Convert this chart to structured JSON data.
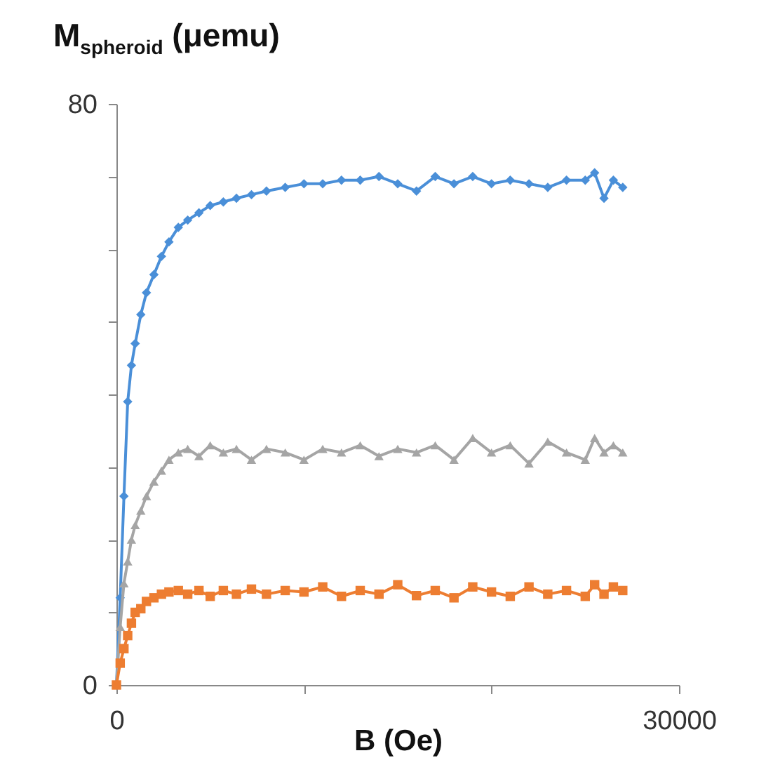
{
  "chart_data": {
    "type": "line",
    "xlabel": "B (Oe)",
    "ylabel": "M$_{spheroid}$ (μemu)",
    "x": [
      0,
      200,
      400,
      600,
      800,
      1000,
      1300,
      1600,
      2000,
      2400,
      2800,
      3300,
      3800,
      4400,
      5000,
      5700,
      6400,
      7200,
      8000,
      9000,
      10000,
      11000,
      12000,
      13000,
      14000,
      15000,
      16000,
      17000,
      18000,
      19000,
      20000,
      21000,
      22000,
      23000,
      24000,
      25000,
      25500,
      26000,
      26500,
      27000
    ],
    "xlim": [
      0,
      30000
    ],
    "xticks": [
      0,
      {
        "value": 10000,
        "label": null
      },
      {
        "value": 20000,
        "label": null
      },
      30000
    ],
    "ylim": [
      0,
      80
    ],
    "yticks": [
      0,
      {
        "value": 10,
        "label": null
      },
      {
        "value": 20,
        "label": null
      },
      {
        "value": 30,
        "label": null
      },
      {
        "value": 40,
        "label": null
      },
      {
        "value": 50,
        "label": null
      },
      {
        "value": 60,
        "label": null
      },
      {
        "value": 70,
        "label": null
      },
      80
    ],
    "grid": false,
    "line_style": "solid",
    "series": [
      {
        "color": "#4a8fd8",
        "marker": "diamond",
        "values": [
          0,
          12,
          26,
          39,
          44,
          47,
          51,
          54,
          56.5,
          59,
          61,
          63,
          64,
          65,
          66,
          66.5,
          67,
          67.5,
          68,
          68.5,
          69,
          69,
          69.5,
          69.5,
          70,
          69,
          68,
          70,
          69,
          70,
          69,
          69.5,
          69,
          68.5,
          69.5,
          69.5,
          70.5,
          67,
          69.5,
          68.5
        ]
      },
      {
        "color": "#a5a5a5",
        "marker": "triangle",
        "values": [
          0,
          8,
          14,
          17,
          20,
          22,
          24,
          26,
          28,
          29.5,
          31,
          32,
          32.5,
          31.5,
          33,
          32,
          32.5,
          31,
          32.5,
          32,
          31,
          32.5,
          32,
          33,
          31.5,
          32.5,
          32,
          33,
          31,
          34,
          32,
          33,
          30.5,
          33.5,
          32,
          31,
          34,
          32,
          33,
          32
        ]
      },
      {
        "color": "#ed7d31",
        "marker": "square",
        "values": [
          0,
          3,
          5,
          6.8,
          8.5,
          10,
          10.5,
          11.5,
          12,
          12.5,
          12.8,
          13,
          12.5,
          13,
          12.2,
          13,
          12.5,
          13.2,
          12.5,
          13,
          12.8,
          13.5,
          12.2,
          13,
          12.5,
          13.8,
          12.3,
          13,
          12,
          13.5,
          12.8,
          12.2,
          13.5,
          12.5,
          13,
          12.2,
          13.8,
          12.5,
          13.5,
          13
        ]
      }
    ]
  }
}
